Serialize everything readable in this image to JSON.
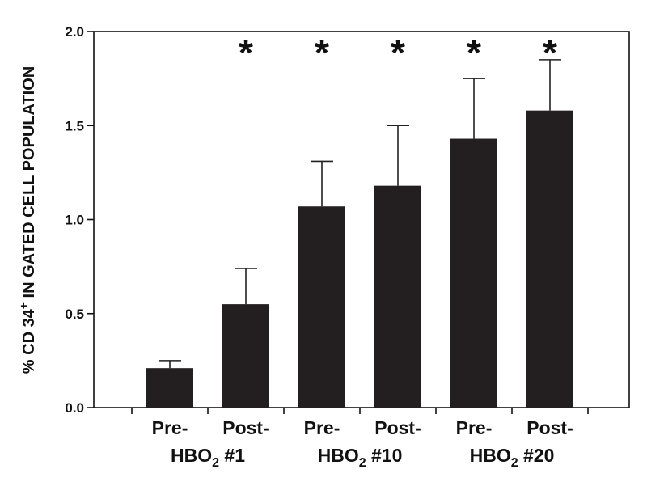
{
  "chart_data": {
    "type": "bar",
    "ylabel_main": "% CD 34",
    "ylabel_sup": "+",
    "ylabel_rest": " IN GATED CELL POPULATION",
    "ylim": [
      0,
      2.0
    ],
    "yticks": [
      "0.0",
      "0.5",
      "1.0",
      "1.5",
      "2.0"
    ],
    "values": [
      0.21,
      0.55,
      1.07,
      1.18,
      1.43,
      1.58
    ],
    "errors": [
      0.04,
      0.19,
      0.24,
      0.32,
      0.32,
      0.27
    ],
    "significant": [
      false,
      true,
      true,
      true,
      true,
      true
    ],
    "significance_marker": "*",
    "bar_color": "#231f20",
    "category_labels": [
      "Pre-",
      "Post-",
      "Pre-",
      "Post-",
      "Pre-",
      "Post-"
    ],
    "groups": [
      {
        "main": "HBO",
        "sub": "2",
        "suffix": " #1"
      },
      {
        "main": "HBO",
        "sub": "2",
        "suffix": " #10"
      },
      {
        "main": "HBO",
        "sub": "2",
        "suffix": " #20"
      }
    ]
  }
}
